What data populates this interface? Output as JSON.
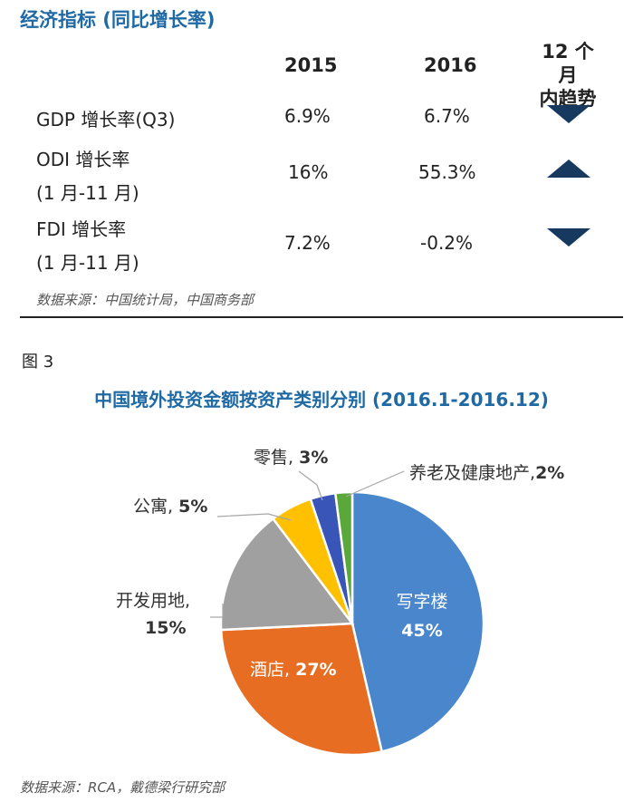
{
  "indicators": {
    "title": "经济指标 (同比增长率)",
    "col_2015": "2015",
    "col_2016": "2016",
    "col_trend_line1": "12 个月",
    "col_trend_line2": "内趋势",
    "rows": [
      {
        "label_line1": "GDP 增长率(Q3)",
        "label_line2": "",
        "v2015": "6.9%",
        "v2016": "6.7%",
        "trend": "down"
      },
      {
        "label_line1": "ODI 增长率",
        "label_line2": "(1 月-11 月)",
        "v2015": "16%",
        "v2016": "55.3%",
        "trend": "up"
      },
      {
        "label_line1": "FDI 增长率",
        "label_line2": "(1 月-11 月)",
        "v2015": "7.2%",
        "v2016": "-0.2%",
        "trend": "down"
      }
    ],
    "source": "数据来源：中国统计局，中国商务部"
  },
  "figure": {
    "label": "图 3",
    "title": "中国境外投资金额按资产类别分别 (2016.1-2016.12)",
    "source": "数据来源：RCA，戴德梁行研究部"
  },
  "chart_data": {
    "type": "pie",
    "title": "中国境外投资金额按资产类别分别 (2016.1-2016.12)",
    "slices": [
      {
        "name": "写字楼",
        "value": 45,
        "label": "45%",
        "color": "#4a86cc"
      },
      {
        "name": "酒店",
        "value": 27,
        "label": "27%",
        "color": "#e66d22"
      },
      {
        "name": "开发用地",
        "value": 15,
        "label": "15%",
        "color": "#a0a0a0"
      },
      {
        "name": "公寓",
        "value": 5,
        "label": "5%",
        "color": "#ffc000"
      },
      {
        "name": "零售",
        "value": 3,
        "label": "3%",
        "color": "#3a55b8"
      },
      {
        "name": "养老及健康地产",
        "value": 2,
        "label": "2%",
        "color": "#5aa83a"
      }
    ],
    "start": "12 o'clock, clockwise"
  }
}
